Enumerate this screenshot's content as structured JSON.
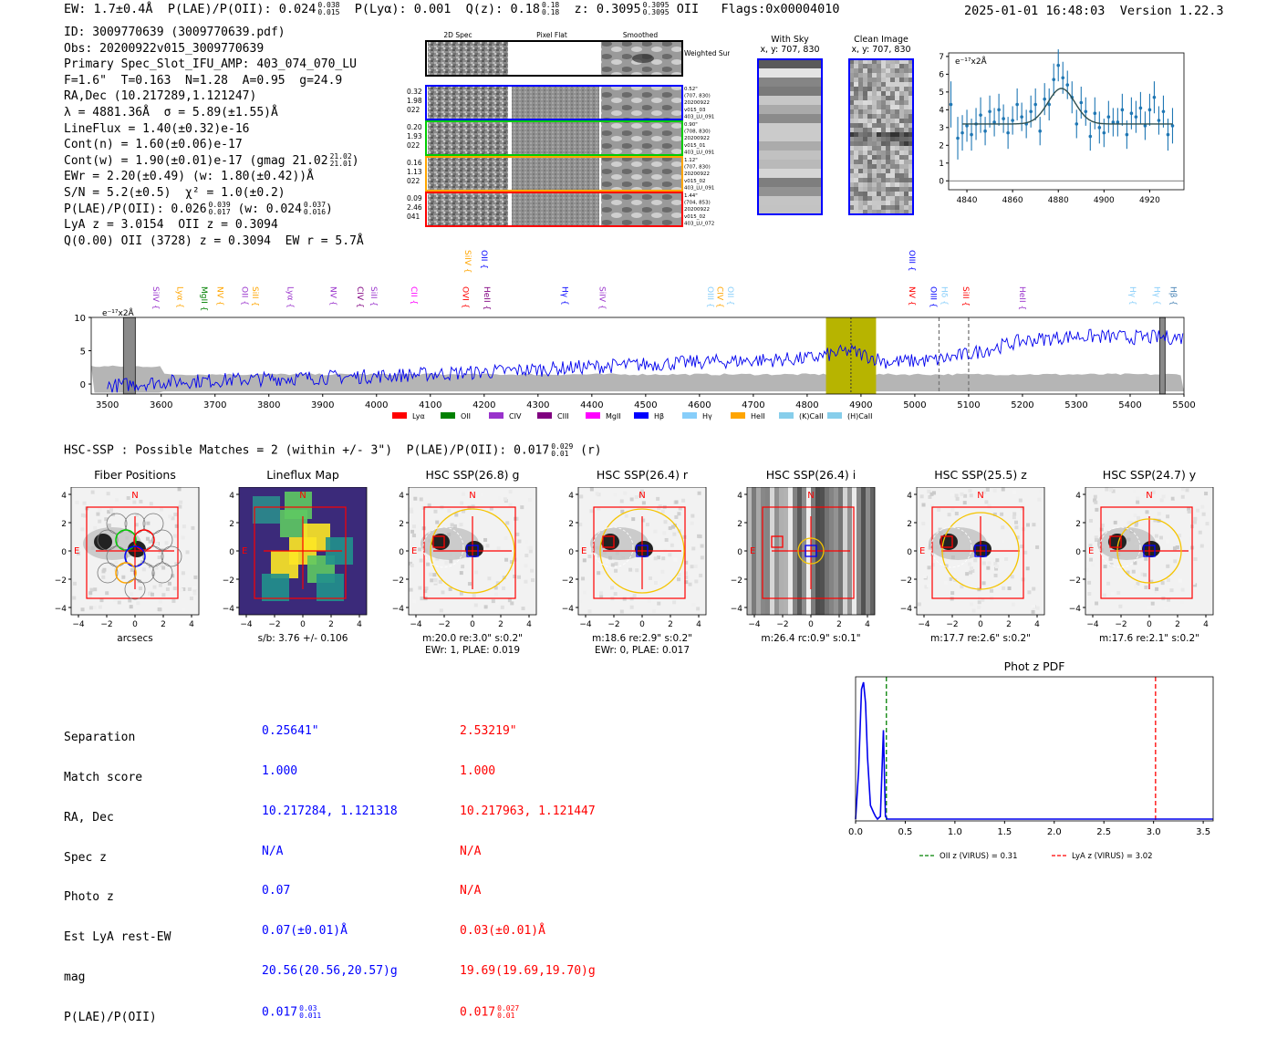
{
  "header": {
    "ew": "EW: 1.7±0.4Å",
    "plae_label": "P(LAE)/P(OII): 0.024",
    "plae_sup": "0.038",
    "plae_sub": "0.015",
    "plya": "P(Lyα): 0.001",
    "qz_label": "Q(z): 0.18",
    "qz_sup": "0.18",
    "qz_sub": "0.18",
    "z_label": "z: 0.3095",
    "z_sup": "0.3095",
    "z_sub": "0.3095",
    "z_line": "OII",
    "flags": "Flags:0x00004010",
    "timestamp": "2025-01-01 16:48:03",
    "version": "Version 1.22.3"
  },
  "info": {
    "id": "ID: 3009770639 (3009770639.pdf)",
    "obs": "Obs: 20200922v015_3009770639",
    "primary": "Primary Spec_Slot_IFU_AMP: 403_074_070_LU",
    "fiber": "F=1.6\"  T=0.163  N=1.28  A=0.95  g=24.9",
    "radec": "RA,Dec (10.217289,1.121247)",
    "lambda": "λ = 4881.36Å  σ = 5.89(±1.55)Å",
    "lineflux": "LineFlux = 1.40(±0.32)e-16",
    "contn": "Cont(n) = 1.60(±0.06)e-17",
    "contw": "Cont(w) = 1.90(±0.01)e-17 (gmag 21.02",
    "contw_sup": "21.02",
    "contw_sub": "21.01",
    "ewr": "EWr = 2.20(±0.49) (w: 1.80(±0.42))Å",
    "sn": "S/N = 5.2(±0.5)  χ² = 1.0(±0.2)",
    "plae": "P(LAE)/P(OII): 0.026",
    "plae_sup": "0.039",
    "plae_sub": "0.017",
    "plae_w": "(w: 0.024",
    "plae_w_sup": "0.037",
    "plae_w_sub": "0.016",
    "lya": "LyA z = 3.0154  OII z = 0.3094",
    "q": "Q(0.00) OII (3728) z = 0.3094  EW r = 5.7Å"
  },
  "cutouts": {
    "col_labels": [
      "2D Spec",
      "Pixel Flat",
      "Smoothed"
    ],
    "weighted_sum": "Weighted Sum",
    "rows": [
      {
        "left": [
          "0.32",
          "1.98",
          "022"
        ],
        "right": [
          "0.52\"",
          "(707, 830)",
          "20200922",
          "v015_03",
          "403_LU_091"
        ],
        "color": "#0000ff"
      },
      {
        "left": [
          "0.20",
          "1.93",
          "022"
        ],
        "right": [
          "0.90\"",
          "(708, 830)",
          "20200922",
          "v015_01",
          "403_LU_091"
        ],
        "color": "#00cc00"
      },
      {
        "left": [
          "0.16",
          "1.13",
          "022"
        ],
        "right": [
          "1.12\"",
          "(707, 830)",
          "20200922",
          "v015_02",
          "403_LU_091"
        ],
        "color": "#ffa500"
      },
      {
        "left": [
          "0.09",
          "2.46",
          "041"
        ],
        "right": [
          "1.44\"",
          "(704, 853)",
          "20200922",
          "v015_02",
          "403_LU_072"
        ],
        "color": "#ff0000"
      }
    ]
  },
  "sky": {
    "title": "With Sky",
    "coords": "x, y: 707, 830"
  },
  "clean": {
    "title": "Clean Image",
    "coords": "x, y: 707, 830"
  },
  "hsc": {
    "line": "HSC-SSP : Possible Matches = 2 (within +/- 3\")  P(LAE)/P(OII): 0.017",
    "sup": "0.029",
    "sub": "0.01",
    "band": "(r)"
  },
  "panels": [
    {
      "title": "Fiber Positions",
      "cap1": "arcsecs",
      "cap2": ""
    },
    {
      "title": "Lineflux Map",
      "cap1": "s/b: 3.76 +/- 0.106",
      "cap2": ""
    },
    {
      "title": "HSC SSP(26.8) g",
      "cap1": "m:20.0  re:3.0\"  s:0.2\"",
      "cap2": "EWr: 1, PLAE: 0.019"
    },
    {
      "title": "HSC SSP(26.4) r",
      "cap1": "m:18.6  re:2.9\"  s:0.2\"",
      "cap2": "EWr: 0, PLAE: 0.017"
    },
    {
      "title": "HSC SSP(26.4) i",
      "cap1": "m:26.4  rc:0.9\"  s:0.1\"",
      "cap2": ""
    },
    {
      "title": "HSC SSP(25.5) z",
      "cap1": "m:17.7  re:2.6\"  s:0.2\"",
      "cap2": ""
    },
    {
      "title": "HSC SSP(24.7) y",
      "cap1": "m:17.6  re:2.1\"  s:0.2\"",
      "cap2": ""
    }
  ],
  "panel_markers": {
    "north": "N",
    "east": "E"
  },
  "matches": {
    "labels": [
      "Separation",
      "Match score",
      "RA, Dec",
      "Spec z",
      "Photo z",
      "Est LyA rest-EW",
      "mag",
      "P(LAE)/P(OII)"
    ],
    "col1": [
      "0.25641\"",
      "1.000",
      "10.217284, 1.121318",
      "N/A",
      "0.07",
      "0.07(±0.01)Å",
      "20.56(20.56,20.57)g",
      "0.017"
    ],
    "col1_sup": "0.03",
    "col1_sub": "0.011",
    "col2": [
      "2.53219\"",
      "1.000",
      "10.217963, 1.121447",
      "N/A",
      "N/A",
      "0.03(±0.01)Å",
      "19.69(19.69,19.70)g",
      "0.017"
    ],
    "col2_sup": "0.027",
    "col2_sub": "0.01"
  },
  "chart_data": [
    {
      "type": "line",
      "title": "",
      "ylabel": "e⁻¹⁷x2Å",
      "xlim": [
        4832,
        4935
      ],
      "ylim": [
        -0.5,
        7.2
      ],
      "xticks": [
        4840,
        4860,
        4880,
        4900,
        4920
      ],
      "yticks": [
        0,
        1,
        2,
        3,
        4,
        5,
        6,
        7
      ],
      "x": [
        4833,
        4836,
        4838,
        4840,
        4842,
        4844,
        4846,
        4848,
        4850,
        4852,
        4854,
        4856,
        4858,
        4860,
        4862,
        4864,
        4866,
        4868,
        4870,
        4872,
        4874,
        4876,
        4878,
        4880,
        4882,
        4884,
        4886,
        4888,
        4890,
        4892,
        4894,
        4896,
        4898,
        4900,
        4902,
        4904,
        4906,
        4908,
        4910,
        4912,
        4914,
        4916,
        4918,
        4920,
        4922,
        4924,
        4926,
        4928,
        4930
      ],
      "y": [
        4.3,
        2.4,
        2.7,
        3.1,
        2.6,
        3.2,
        3.7,
        2.8,
        3.9,
        3.3,
        4.0,
        3.5,
        2.7,
        3.4,
        4.3,
        3.6,
        3.2,
        3.9,
        4.3,
        2.8,
        4.6,
        4.3,
        5.7,
        6.5,
        5.8,
        5.4,
        4.7,
        3.2,
        4.4,
        3.9,
        2.5,
        3.8,
        3.0,
        2.7,
        3.6,
        3.3,
        3.3,
        4.0,
        2.6,
        3.8,
        3.6,
        4.1,
        3.1,
        4.0,
        4.7,
        3.4,
        3.9,
        2.6,
        3.1
      ],
      "errors": [
        1.3,
        1.2,
        1.0,
        0.9,
        0.9,
        0.9,
        1.0,
        0.8,
        0.9,
        0.8,
        0.9,
        0.8,
        0.9,
        0.8,
        0.9,
        0.8,
        0.8,
        0.9,
        0.9,
        0.8,
        0.9,
        0.9,
        0.9,
        0.9,
        0.9,
        0.8,
        0.9,
        0.8,
        0.9,
        0.8,
        0.8,
        0.9,
        0.9,
        0.8,
        0.9,
        0.8,
        0.8,
        0.9,
        0.8,
        0.9,
        0.9,
        0.9,
        0.8,
        0.9,
        0.9,
        0.8,
        0.9,
        0.9,
        1.0
      ],
      "fit": {
        "continuum": 3.2,
        "peak": 5.2,
        "center": 4881.36,
        "sigma": 5.89
      }
    },
    {
      "type": "line",
      "title": "",
      "ylabel": "e⁻¹⁷x2Å",
      "xlim": [
        3470,
        5500
      ],
      "ylim": [
        -1.5,
        10
      ],
      "xticks": [
        3500,
        3600,
        3700,
        3800,
        3900,
        4000,
        4100,
        4200,
        4300,
        4400,
        4500,
        4600,
        4700,
        4800,
        4900,
        5000,
        5100,
        5200,
        5300,
        5400,
        5500
      ],
      "yticks": [
        0,
        5,
        10
      ],
      "highlight": [
        4835,
        4928
      ],
      "line_center": 4881.36,
      "dashed_lines": [
        5045,
        5100
      ],
      "masked": [
        [
          3530,
          3552
        ],
        [
          5455,
          5465
        ]
      ],
      "line_labels": [
        {
          "name": "SiIV",
          "x": 3580,
          "color": "#9932cc",
          "row": 2
        },
        {
          "name": "Lyα",
          "x": 3625,
          "color": "#ffa500",
          "row": 2
        },
        {
          "name": "MgII",
          "x": 3670,
          "color": "#008000",
          "row": 2
        },
        {
          "name": "NV",
          "x": 3700,
          "color": "#ffa500",
          "row": 2
        },
        {
          "name": "OII",
          "x": 3745,
          "color": "#9932cc",
          "row": 2
        },
        {
          "name": "SiII",
          "x": 3765,
          "color": "#ffa500",
          "row": 2
        },
        {
          "name": "Lyα",
          "x": 3830,
          "color": "#9932cc",
          "row": 2
        },
        {
          "name": "NV",
          "x": 3910,
          "color": "#9932cc",
          "row": 2
        },
        {
          "name": "CIV",
          "x": 3960,
          "color": "#800080",
          "row": 2
        },
        {
          "name": "SiII",
          "x": 3985,
          "color": "#9932cc",
          "row": 2
        },
        {
          "name": "CII",
          "x": 4060,
          "color": "#ff00ff",
          "row": 2
        },
        {
          "name": "OVI",
          "x": 4155,
          "color": "#ff0000",
          "row": 2
        },
        {
          "name": "HeII",
          "x": 4195,
          "color": "#800080",
          "row": 2
        },
        {
          "name": "SiIV",
          "x": 4160,
          "color": "#ffa500",
          "row": 1
        },
        {
          "name": "OII",
          "x": 4190,
          "color": "#0000ff",
          "row": 1
        },
        {
          "name": "Hγ",
          "x": 4340,
          "color": "#0000ff",
          "row": 2
        },
        {
          "name": "SiIV",
          "x": 4410,
          "color": "#9932cc",
          "row": 2
        },
        {
          "name": "OIII",
          "x": 4610,
          "color": "#87cefa",
          "row": 2
        },
        {
          "name": "CIV",
          "x": 4628,
          "color": "#ffa500",
          "row": 2
        },
        {
          "name": "OII",
          "x": 4648,
          "color": "#87cefa",
          "row": 2
        },
        {
          "name": "OIII",
          "x": 4985,
          "color": "#0000ff",
          "row": 1
        },
        {
          "name": "NV",
          "x": 4985,
          "color": "#ff0000",
          "row": 2
        },
        {
          "name": "OIII",
          "x": 5025,
          "color": "#0000ff",
          "row": 2
        },
        {
          "name": "Hδ",
          "x": 5045,
          "color": "#87cefa",
          "row": 2
        },
        {
          "name": "SiII",
          "x": 5085,
          "color": "#ff0000",
          "row": 2
        },
        {
          "name": "HeII",
          "x": 5190,
          "color": "#9932cc",
          "row": 2
        },
        {
          "name": "Hγ",
          "x": 5395,
          "color": "#87cefa",
          "row": 2
        },
        {
          "name": "Hγ",
          "x": 5440,
          "color": "#87cefa",
          "row": 2
        },
        {
          "name": "Hβ",
          "x": 5470,
          "color": "#4682b4",
          "row": 2
        }
      ],
      "legend": [
        {
          "name": "Lyα",
          "color": "#ff0000"
        },
        {
          "name": "OII",
          "color": "#008000"
        },
        {
          "name": "CIV",
          "color": "#9932cc"
        },
        {
          "name": "CIII",
          "color": "#800080"
        },
        {
          "name": "MgII",
          "color": "#ff00ff"
        },
        {
          "name": "Hβ",
          "color": "#0000ff"
        },
        {
          "name": "Hγ",
          "color": "#87cefa"
        },
        {
          "name": "HeII",
          "color": "#ffa500"
        },
        {
          "name": "(K)CaII",
          "color": "#87ceeb"
        },
        {
          "name": "(H)CaII",
          "color": "#87ceeb"
        }
      ],
      "trend": {
        "x": [
          3500,
          3600,
          3800,
          4000,
          4200,
          4400,
          4600,
          4800,
          4880,
          4950,
          5040,
          5100,
          5200,
          5300,
          5400,
          5500
        ],
        "y": [
          -0.3,
          0.3,
          0.8,
          1.2,
          1.8,
          2.6,
          3.3,
          3.8,
          5.0,
          3.3,
          3.6,
          4.5,
          6.5,
          7.2,
          7.0,
          7.0
        ]
      }
    },
    {
      "type": "line",
      "title": "Phot z PDF",
      "xlim": [
        0,
        3.6
      ],
      "xticks": [
        0.0,
        0.5,
        1.0,
        1.5,
        2.0,
        2.5,
        3.0,
        3.5
      ],
      "xtick_labels": [
        "0.0",
        "0.5",
        "1.0",
        "1.5",
        "2.0",
        "2.5",
        "3.0",
        "3.5"
      ],
      "x": [
        0,
        0.03,
        0.06,
        0.08,
        0.1,
        0.12,
        0.15,
        0.18,
        0.2,
        0.22,
        0.25,
        0.28,
        0.3,
        0.32,
        0.35,
        3.6
      ],
      "y": [
        0.0,
        0.35,
        0.95,
        1.0,
        0.85,
        0.45,
        0.1,
        0.05,
        0.02,
        0.0,
        0.02,
        0.65,
        0.02,
        0.0,
        0.0,
        0.0
      ],
      "vlines": [
        {
          "x": 0.31,
          "color": "#008000",
          "label": "OII z (VIRUS) = 0.31"
        },
        {
          "x": 3.02,
          "color": "#ff0000",
          "label": "LyA z (VIRUS) = 3.02"
        }
      ]
    }
  ]
}
